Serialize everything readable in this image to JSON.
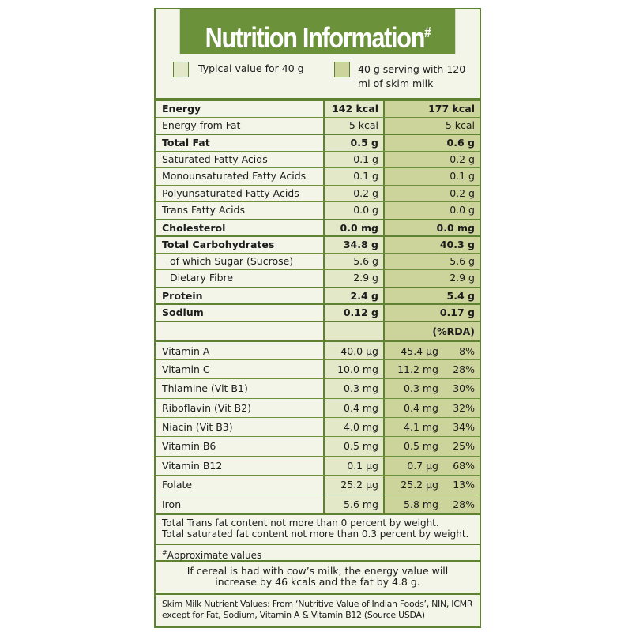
{
  "header": {
    "title": "Nutrition Information",
    "title_mark": "#"
  },
  "legend": {
    "typical": "Typical value for 40 g",
    "serving": "40 g serving with 120 ml of skim milk"
  },
  "nutrients": [
    [
      {
        "label": "Energy",
        "v1": "142 kcal",
        "v2": "177 kcal"
      },
      {
        "label": "Energy from Fat",
        "v1": "5 kcal",
        "v2": "5 kcal"
      }
    ],
    [
      {
        "label": "Total Fat",
        "v1": "0.5 g",
        "v2": "0.6 g"
      },
      {
        "label": "Saturated Fatty Acids",
        "v1": "0.1 g",
        "v2": "0.2 g"
      },
      {
        "label": "Monounsaturated Fatty Acids",
        "v1": "0.1 g",
        "v2": "0.1 g"
      },
      {
        "label": "Polyunsaturated Fatty Acids",
        "v1": "0.2 g",
        "v2": "0.2 g"
      },
      {
        "label": "Trans Fatty Acids",
        "v1": "0.0 g",
        "v2": "0.0 g"
      }
    ],
    [
      {
        "label": "Cholesterol",
        "v1": "0.0 mg",
        "v2": "0.0 mg"
      }
    ],
    [
      {
        "label": "Total Carbohydrates",
        "v1": "34.8 g",
        "v2": "40.3 g"
      },
      {
        "label": "of which Sugar (Sucrose)",
        "v1": "5.6 g",
        "v2": "5.6 g",
        "indent": true
      },
      {
        "label": "Dietary Fibre",
        "v1": "2.9 g",
        "v2": "2.9 g",
        "indent": true
      }
    ],
    [
      {
        "label": "Protein",
        "v1": "2.4 g",
        "v2": "5.4 g"
      }
    ],
    [
      {
        "label": "Sodium",
        "v1": "0.12 g",
        "v2": "0.17 g"
      }
    ]
  ],
  "rda_header": "(%RDA)",
  "vitamins": [
    {
      "label": "Vitamin A",
      "v1": "40.0 µg",
      "v2": "45.4 µg",
      "rda": "8%"
    },
    {
      "label": "Vitamin C",
      "v1": "10.0 mg",
      "v2": "11.2 mg",
      "rda": "28%"
    },
    {
      "label": "Thiamine (Vit B1)",
      "v1": "0.3 mg",
      "v2": "0.3 mg",
      "rda": "30%"
    },
    {
      "label": "Riboflavin (Vit B2)",
      "v1": "0.4 mg",
      "v2": "0.4 mg",
      "rda": "32%"
    },
    {
      "label": "Niacin (Vit B3)",
      "v1": "4.0 mg",
      "v2": "4.1 mg",
      "rda": "34%"
    },
    {
      "label": "Vitamin B6",
      "v1": "0.5 mg",
      "v2": "0.5 mg",
      "rda": "25%"
    },
    {
      "label": "Vitamin B12",
      "v1": "0.1 µg",
      "v2": "0.7 µg",
      "rda": "68%"
    },
    {
      "label": "Folate",
      "v1": "25.2 µg",
      "v2": "25.2 µg",
      "rda": "13%"
    },
    {
      "label": "Iron",
      "v1": "5.6 mg",
      "v2": "5.8 mg",
      "rda": "28%"
    }
  ],
  "notes": {
    "trans": "Total Trans fat content not more than 0 percent by weight.",
    "saturated": "Total saturated fat content not more than 0.3 percent by weight.",
    "approx_mark": "#",
    "approx": "Approximate values",
    "cow_milk": "If cereal is had with cow’s milk, the energy value will increase by 46 kcals and the fat by 4.8 g.",
    "source": "Skim Milk Nutrient Values: From ‘Nutritive Value of Indian Foods’, NIN, ICMR except for Fat, Sodium, Vitamin A & Vitamin B12 (Source USDA)"
  }
}
